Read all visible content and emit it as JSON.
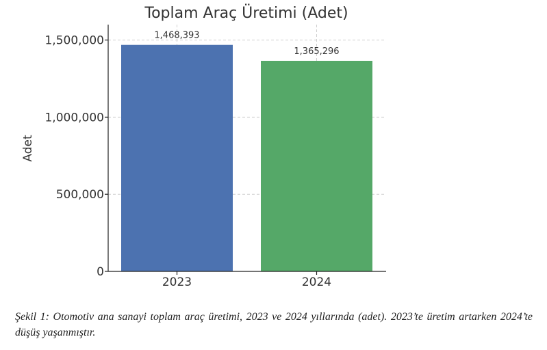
{
  "chart_data": {
    "type": "bar",
    "title": "Toplam Araç Üretimi (Adet)",
    "xlabel": "",
    "ylabel": "Adet",
    "categories": [
      "2023",
      "2024"
    ],
    "values": [
      1468393,
      1365296
    ],
    "data_labels": [
      "1,468,393",
      "1,365,296"
    ],
    "colors": [
      "#4C72B0",
      "#55A868"
    ],
    "ylim": [
      0,
      1600000
    ],
    "yticks": [
      0,
      500000,
      1000000,
      1500000
    ],
    "ytick_labels": [
      "0",
      "500,000",
      "1,000,000",
      "1,500,000"
    ],
    "grid": true
  },
  "caption": "Şekil 1: Otomotiv ana sanayi toplam araç üretimi, 2023 ve 2024 yıllarında (adet). 2023’te üretim artarken 2024’te düşüş yaşanmıştır."
}
